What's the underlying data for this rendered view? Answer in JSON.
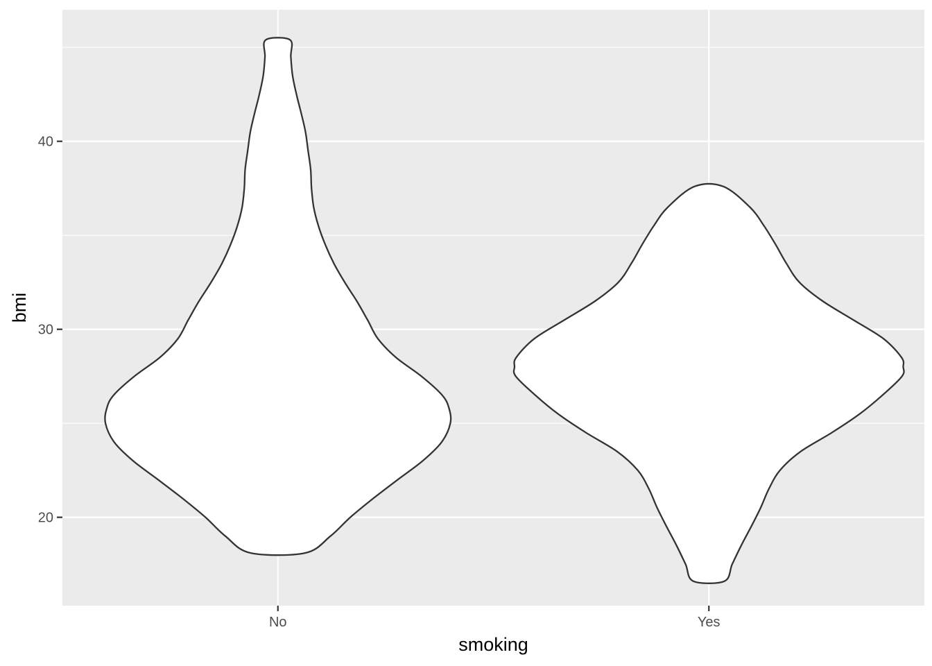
{
  "chart_data": {
    "type": "violin",
    "title": "",
    "xlabel": "smoking",
    "ylabel": "bmi",
    "categories": [
      "No",
      "Yes"
    ],
    "ylim": [
      15.3,
      47
    ],
    "yticks": [
      20,
      30,
      40
    ],
    "grid": true,
    "colors": {
      "panel_bg": "#ebebeb",
      "grid": "#ffffff",
      "violin_fill": "#ffffff",
      "violin_stroke": "#333333",
      "tick_text": "#4d4d4d"
    },
    "series": [
      {
        "category": "No",
        "min": 18.1,
        "max": 45.4,
        "density_profile": [
          {
            "bmi": 18.1,
            "half_width": 0.063
          },
          {
            "bmi": 19.0,
            "half_width": 0.122
          },
          {
            "bmi": 20.0,
            "half_width": 0.168
          },
          {
            "bmi": 21.0,
            "half_width": 0.221
          },
          {
            "bmi": 22.0,
            "half_width": 0.278
          },
          {
            "bmi": 23.0,
            "half_width": 0.336
          },
          {
            "bmi": 24.0,
            "half_width": 0.38
          },
          {
            "bmi": 25.0,
            "half_width": 0.4
          },
          {
            "bmi": 25.8,
            "half_width": 0.397
          },
          {
            "bmi": 26.5,
            "half_width": 0.381
          },
          {
            "bmi": 27.5,
            "half_width": 0.333
          },
          {
            "bmi": 28.5,
            "half_width": 0.274
          },
          {
            "bmi": 29.5,
            "half_width": 0.232
          },
          {
            "bmi": 30.5,
            "half_width": 0.208
          },
          {
            "bmi": 31.5,
            "half_width": 0.183
          },
          {
            "bmi": 32.5,
            "half_width": 0.155
          },
          {
            "bmi": 33.5,
            "half_width": 0.13
          },
          {
            "bmi": 34.5,
            "half_width": 0.11
          },
          {
            "bmi": 35.5,
            "half_width": 0.094
          },
          {
            "bmi": 36.5,
            "half_width": 0.083
          },
          {
            "bmi": 37.5,
            "half_width": 0.078
          },
          {
            "bmi": 38.5,
            "half_width": 0.076
          },
          {
            "bmi": 39.5,
            "half_width": 0.07
          },
          {
            "bmi": 40.5,
            "half_width": 0.064
          },
          {
            "bmi": 41.5,
            "half_width": 0.054
          },
          {
            "bmi": 42.5,
            "half_width": 0.043
          },
          {
            "bmi": 43.5,
            "half_width": 0.034
          },
          {
            "bmi": 44.5,
            "half_width": 0.03
          },
          {
            "bmi": 45.4,
            "half_width": 0.028
          }
        ]
      },
      {
        "category": "Yes",
        "min": 16.6,
        "max": 37.6,
        "density_profile": [
          {
            "bmi": 16.6,
            "half_width": 0.036
          },
          {
            "bmi": 17.5,
            "half_width": 0.054
          },
          {
            "bmi": 18.5,
            "half_width": 0.075
          },
          {
            "bmi": 19.5,
            "half_width": 0.098
          },
          {
            "bmi": 20.5,
            "half_width": 0.12
          },
          {
            "bmi": 21.5,
            "half_width": 0.139
          },
          {
            "bmi": 22.5,
            "half_width": 0.165
          },
          {
            "bmi": 23.5,
            "half_width": 0.213
          },
          {
            "bmi": 24.5,
            "half_width": 0.285
          },
          {
            "bmi": 25.5,
            "half_width": 0.35
          },
          {
            "bmi": 26.5,
            "half_width": 0.403
          },
          {
            "bmi": 27.5,
            "half_width": 0.448
          },
          {
            "bmi": 28.0,
            "half_width": 0.451
          },
          {
            "bmi": 28.5,
            "half_width": 0.447
          },
          {
            "bmi": 29.5,
            "half_width": 0.405
          },
          {
            "bmi": 30.5,
            "half_width": 0.335
          },
          {
            "bmi": 31.5,
            "half_width": 0.264
          },
          {
            "bmi": 32.5,
            "half_width": 0.21
          },
          {
            "bmi": 33.5,
            "half_width": 0.18
          },
          {
            "bmi": 34.5,
            "half_width": 0.155
          },
          {
            "bmi": 35.5,
            "half_width": 0.128
          },
          {
            "bmi": 36.5,
            "half_width": 0.095
          },
          {
            "bmi": 37.6,
            "half_width": 0.033
          }
        ]
      }
    ]
  }
}
